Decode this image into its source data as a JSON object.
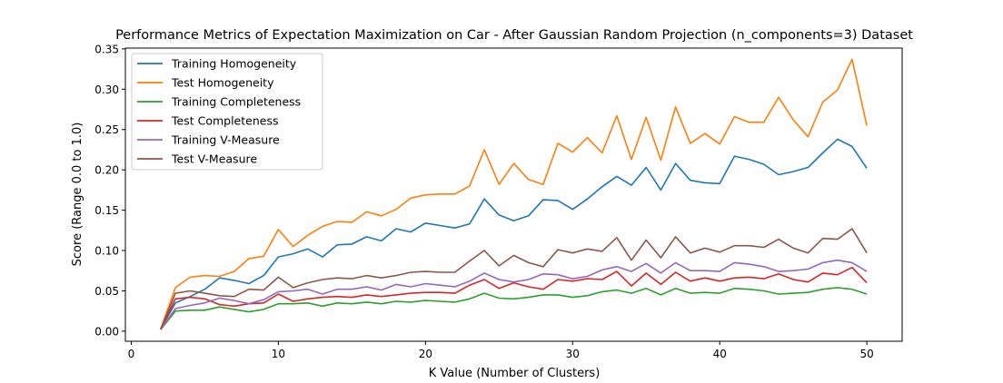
{
  "chart_data": {
    "type": "line",
    "title": "Performance Metrics of Expectation Maximization on Car - After Gaussian Random Projection (n_components=3) Dataset",
    "xlabel": "K Value (Number of Clusters)",
    "ylabel": "Score (Range 0.0 to 1.0)",
    "xlim": [
      -0.4,
      52.4
    ],
    "ylim": [
      -0.0125,
      0.351
    ],
    "xticks": [
      0,
      10,
      20,
      30,
      40,
      50
    ],
    "yticks": [
      0.0,
      0.05,
      0.1,
      0.15,
      0.2,
      0.25,
      0.3,
      0.35
    ],
    "xtick_labels": [
      "0",
      "10",
      "20",
      "30",
      "40",
      "50"
    ],
    "ytick_labels": [
      "0.00",
      "0.05",
      "0.10",
      "0.15",
      "0.20",
      "0.25",
      "0.30",
      "0.35"
    ],
    "legend_position": "top-left",
    "grid": false,
    "x": [
      2,
      3,
      4,
      5,
      6,
      7,
      8,
      9,
      10,
      11,
      12,
      13,
      14,
      15,
      16,
      17,
      18,
      19,
      20,
      21,
      22,
      23,
      24,
      25,
      26,
      27,
      28,
      29,
      30,
      31,
      32,
      33,
      34,
      35,
      36,
      37,
      38,
      39,
      40,
      41,
      42,
      43,
      44,
      45,
      46,
      47,
      48,
      49,
      50
    ],
    "series": [
      {
        "name": "Training Homogeneity",
        "color": "#1f77b4",
        "values": [
          0.003,
          0.035,
          0.043,
          0.052,
          0.066,
          0.063,
          0.059,
          0.069,
          0.092,
          0.096,
          0.102,
          0.092,
          0.107,
          0.108,
          0.117,
          0.112,
          0.127,
          0.123,
          0.134,
          0.131,
          0.128,
          0.133,
          0.164,
          0.144,
          0.137,
          0.143,
          0.163,
          0.162,
          0.151,
          0.164,
          0.179,
          0.192,
          0.181,
          0.203,
          0.175,
          0.208,
          0.187,
          0.184,
          0.183,
          0.217,
          0.213,
          0.207,
          0.194,
          0.198,
          0.203,
          0.221,
          0.238,
          0.229,
          0.202
        ]
      },
      {
        "name": "Test Homogeneity",
        "color": "#ff7f0e",
        "values": [
          0.003,
          0.054,
          0.067,
          0.069,
          0.068,
          0.074,
          0.09,
          0.093,
          0.126,
          0.105,
          0.119,
          0.13,
          0.136,
          0.135,
          0.148,
          0.143,
          0.151,
          0.165,
          0.169,
          0.17,
          0.17,
          0.18,
          0.225,
          0.182,
          0.208,
          0.188,
          0.182,
          0.233,
          0.222,
          0.24,
          0.221,
          0.267,
          0.213,
          0.265,
          0.212,
          0.278,
          0.233,
          0.245,
          0.232,
          0.266,
          0.259,
          0.259,
          0.29,
          0.262,
          0.241,
          0.284,
          0.299,
          0.337,
          0.255
        ]
      },
      {
        "name": "Training Completeness",
        "color": "#2ca02c",
        "values": [
          0.002,
          0.025,
          0.026,
          0.026,
          0.03,
          0.027,
          0.024,
          0.027,
          0.034,
          0.034,
          0.035,
          0.031,
          0.035,
          0.034,
          0.036,
          0.034,
          0.037,
          0.036,
          0.038,
          0.037,
          0.036,
          0.04,
          0.047,
          0.041,
          0.04,
          0.042,
          0.045,
          0.045,
          0.042,
          0.044,
          0.049,
          0.051,
          0.047,
          0.053,
          0.045,
          0.053,
          0.047,
          0.048,
          0.047,
          0.053,
          0.052,
          0.05,
          0.046,
          0.047,
          0.048,
          0.052,
          0.054,
          0.052,
          0.046
        ]
      },
      {
        "name": "Test Completeness",
        "color": "#d62728",
        "values": [
          0.002,
          0.04,
          0.042,
          0.04,
          0.033,
          0.031,
          0.034,
          0.035,
          0.046,
          0.037,
          0.04,
          0.042,
          0.043,
          0.042,
          0.045,
          0.043,
          0.045,
          0.047,
          0.048,
          0.048,
          0.047,
          0.057,
          0.064,
          0.053,
          0.06,
          0.055,
          0.052,
          0.064,
          0.062,
          0.065,
          0.064,
          0.074,
          0.056,
          0.072,
          0.058,
          0.073,
          0.062,
          0.066,
          0.062,
          0.066,
          0.067,
          0.065,
          0.071,
          0.064,
          0.061,
          0.072,
          0.07,
          0.079,
          0.06
        ]
      },
      {
        "name": "Training V-Measure",
        "color": "#9467bd",
        "values": [
          0.002,
          0.028,
          0.032,
          0.035,
          0.041,
          0.038,
          0.034,
          0.039,
          0.049,
          0.05,
          0.052,
          0.046,
          0.052,
          0.052,
          0.055,
          0.051,
          0.058,
          0.055,
          0.059,
          0.057,
          0.055,
          0.062,
          0.072,
          0.064,
          0.061,
          0.064,
          0.071,
          0.07,
          0.065,
          0.068,
          0.076,
          0.08,
          0.074,
          0.084,
          0.072,
          0.085,
          0.075,
          0.075,
          0.074,
          0.085,
          0.083,
          0.08,
          0.074,
          0.075,
          0.077,
          0.085,
          0.088,
          0.085,
          0.074
        ]
      },
      {
        "name": "Test V-Measure",
        "color": "#8c564b",
        "values": [
          0.002,
          0.047,
          0.05,
          0.047,
          0.044,
          0.043,
          0.052,
          0.051,
          0.067,
          0.054,
          0.06,
          0.064,
          0.066,
          0.065,
          0.069,
          0.066,
          0.069,
          0.073,
          0.074,
          0.073,
          0.073,
          0.087,
          0.1,
          0.081,
          0.094,
          0.085,
          0.08,
          0.101,
          0.097,
          0.102,
          0.099,
          0.116,
          0.088,
          0.113,
          0.091,
          0.117,
          0.097,
          0.103,
          0.098,
          0.106,
          0.106,
          0.104,
          0.114,
          0.103,
          0.097,
          0.115,
          0.114,
          0.127,
          0.097
        ]
      }
    ]
  }
}
